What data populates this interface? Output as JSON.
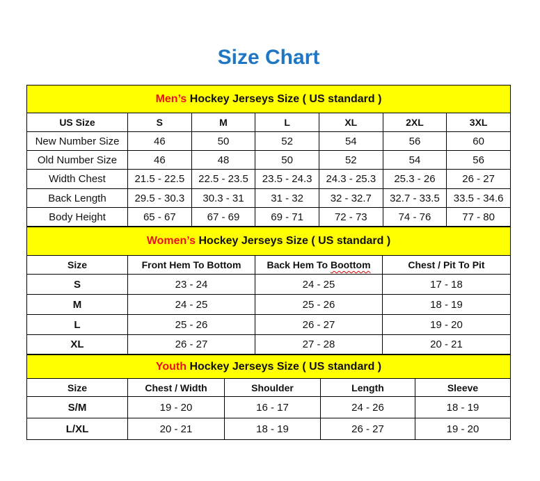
{
  "title": "Size Chart",
  "colors": {
    "title": "#1f77c4",
    "banner": "#ffff00",
    "highlight": "#e8141b"
  },
  "men": {
    "banner_highlight": "Men’s",
    "banner_rest": " Hockey Jerseys Size ( US standard )",
    "headers": [
      "US Size",
      "S",
      "M",
      "L",
      "XL",
      "2XL",
      "3XL"
    ],
    "rows": [
      [
        "New Number Size",
        "46",
        "50",
        "52",
        "54",
        "56",
        "60"
      ],
      [
        "Old Number Size",
        "46",
        "48",
        "50",
        "52",
        "54",
        "56"
      ],
      [
        "Width Chest",
        "21.5 - 22.5",
        "22.5 - 23.5",
        "23.5 - 24.3",
        "24.3 - 25.3",
        "25.3 - 26",
        "26 - 27"
      ],
      [
        "Back Length",
        "29.5 - 30.3",
        "30.3 - 31",
        "31 - 32",
        "32 - 32.7",
        "32.7 - 33.5",
        "33.5 - 34.6"
      ],
      [
        "Body Height",
        "65 - 67",
        "67 - 69",
        "69 - 71",
        "72 - 73",
        "74 - 76",
        "77 - 80"
      ]
    ]
  },
  "women": {
    "banner_highlight": "Women’s",
    "banner_rest": " Hockey Jerseys Size ( US standard )",
    "headers": [
      "Size",
      "Front Hem To Bottom",
      "Back Hem To ",
      "Chest / Pit To Pit"
    ],
    "header_misspelled": "Boottom",
    "rows": [
      [
        "S",
        "23 - 24",
        "24 - 25",
        "17 - 18"
      ],
      [
        "M",
        "24 - 25",
        "25 - 26",
        "18 - 19"
      ],
      [
        "L",
        "25 - 26",
        "26 - 27",
        "19 - 20"
      ],
      [
        "XL",
        "26 - 27",
        "27 - 28",
        "20 - 21"
      ]
    ]
  },
  "youth": {
    "banner_highlight": "Youth",
    "banner_rest": " Hockey Jerseys Size ( US standard )",
    "headers": [
      "Size",
      "Chest / Width",
      "Shoulder",
      "Length",
      "Sleeve"
    ],
    "rows": [
      [
        "S/M",
        "19 - 20",
        "16 - 17",
        "24 - 26",
        "18 - 19"
      ],
      [
        "L/XL",
        "20 - 21",
        "18 - 19",
        "26 - 27",
        "19 - 20"
      ]
    ]
  }
}
